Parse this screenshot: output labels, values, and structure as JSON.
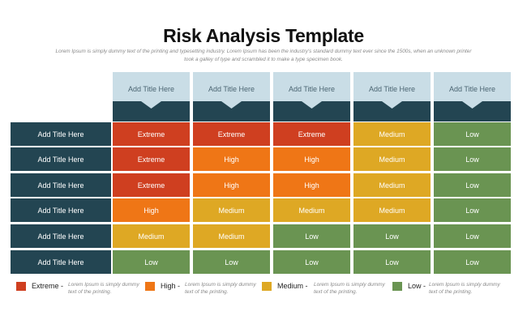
{
  "title": "Risk Analysis Template",
  "subtitle": "Lorem Ipsum is simply dummy text of the printing and typesetting industry. Lorem Ipsum has been the industry's standard dummy text ever since the 1500s, when an unknown printer took a galley of type and scrambled it to make a type specimen book.",
  "colors": {
    "Extreme": "#cf3f20",
    "High": "#ef7616",
    "Medium": "#dea824",
    "Low": "#6a9452",
    "row_header": "#234552",
    "column_header": "#c9dde6"
  },
  "columns": [
    "Add Title Here",
    "Add Title Here",
    "Add Title Here",
    "Add Title Here",
    "Add Title Here"
  ],
  "rows": [
    {
      "label": "Add Title Here",
      "cells": [
        "Extreme",
        "Extreme",
        "Extreme",
        "Medium",
        "Low"
      ]
    },
    {
      "label": "Add Title Here",
      "cells": [
        "Extreme",
        "High",
        "High",
        "Medium",
        "Low"
      ]
    },
    {
      "label": "Add Title Here",
      "cells": [
        "Extreme",
        "High",
        "High",
        "Medium",
        "Low"
      ]
    },
    {
      "label": "Add Title Here",
      "cells": [
        "High",
        "Medium",
        "Medium",
        "Medium",
        "Low"
      ]
    },
    {
      "label": "Add Title Here",
      "cells": [
        "Medium",
        "Medium",
        "Low",
        "Low",
        "Low"
      ]
    },
    {
      "label": "Add Title Here",
      "cells": [
        "Low",
        "Low",
        "Low",
        "Low",
        "Low"
      ]
    }
  ],
  "legend": [
    {
      "level": "Extreme",
      "label": "Extreme -",
      "desc": "Lorem Ipsum is simply dummy text of the printing."
    },
    {
      "level": "High",
      "label": "High -",
      "desc": "Lorem Ipsum is simply dummy text of the printing."
    },
    {
      "level": "Medium",
      "label": "Medium -",
      "desc": "Lorem Ipsum is simply dummy text of the printing."
    },
    {
      "level": "Low",
      "label": "Low -",
      "desc": "Lorem Ipsum is simply dummy text of the printing."
    }
  ]
}
